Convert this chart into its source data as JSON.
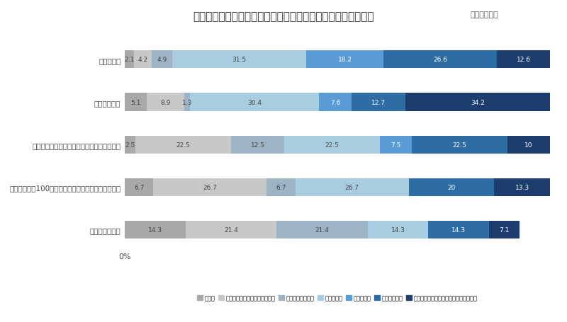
{
  "title": "商品の購入を迷っている際に、最も参考にする人へのイメージ",
  "title_suffix": "（単一回答）",
  "categories": [
    "家族や友人",
    "お店の販売員",
    "専門テーマをもつマイクロインフルエンサー",
    "フォロワー数100万人を超えるメガインフルエンサー",
    "芸能人／モデル"
  ],
  "legend_labels": [
    "憧れる",
    "最新のトレンドを教えてくれる",
    "真似したいと思う",
    "信頼できる",
    "共感できる",
    "身近に感じる",
    "自分にあったおすすめを提案してくれる"
  ],
  "colors": [
    "#a8a8a8",
    "#c8c8c8",
    "#9cb4c4",
    "#a8cce0",
    "#5b9bd5",
    "#2e6da4",
    "#1c3d6e"
  ],
  "data": [
    [
      2.1,
      4.2,
      4.9,
      31.5,
      18.2,
      26.6,
      12.6
    ],
    [
      5.1,
      8.9,
      1.3,
      30.4,
      7.6,
      12.7,
      34.2
    ],
    [
      2.5,
      22.5,
      12.5,
      22.5,
      7.5,
      22.5,
      10.0
    ],
    [
      6.7,
      26.7,
      6.7,
      26.7,
      0.0,
      20.0,
      13.3
    ],
    [
      14.3,
      21.4,
      21.4,
      14.3,
      0.0,
      14.3,
      7.1
    ]
  ],
  "background_color": "#ffffff",
  "bar_height": 0.42,
  "xlabel": "0%"
}
